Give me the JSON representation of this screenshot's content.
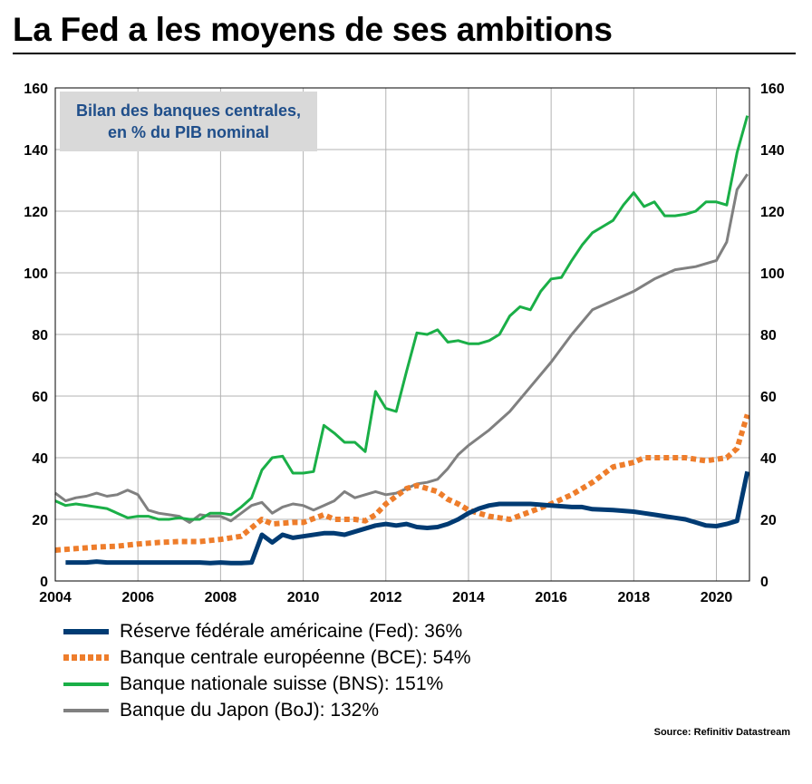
{
  "title": "La Fed a les moyens de ses ambitions",
  "source": "Source: Refinitiv Datastream",
  "annotation": [
    "Bilan des banques centrales,",
    "en % du PIB nominal"
  ],
  "chart_data": {
    "type": "line",
    "xlim": [
      2004,
      2020.8
    ],
    "ylim": [
      0,
      160
    ],
    "x_ticks": [
      "2004",
      "2006",
      "2008",
      "2010",
      "2012",
      "2014",
      "2016",
      "2018",
      "2020"
    ],
    "y_ticks": [
      "0",
      "20",
      "40",
      "60",
      "80",
      "100",
      "120",
      "140",
      "160"
    ],
    "grid": true,
    "legend_position": "bottom",
    "series": [
      {
        "name": "Réserve fédérale américaine (Fed): 36%",
        "color": "#003b73",
        "style": "solid",
        "points": [
          [
            2004.25,
            6
          ],
          [
            2004.75,
            6
          ],
          [
            2005,
            6.3
          ],
          [
            2005.25,
            6
          ],
          [
            2005.75,
            6
          ],
          [
            2006,
            6
          ],
          [
            2006.5,
            6
          ],
          [
            2007,
            6
          ],
          [
            2007.5,
            6
          ],
          [
            2007.75,
            5.8
          ],
          [
            2008,
            6
          ],
          [
            2008.25,
            5.8
          ],
          [
            2008.5,
            5.8
          ],
          [
            2008.75,
            6
          ],
          [
            2009,
            15
          ],
          [
            2009.25,
            12.5
          ],
          [
            2009.5,
            15
          ],
          [
            2009.75,
            14
          ],
          [
            2010,
            14.5
          ],
          [
            2010.5,
            15.5
          ],
          [
            2010.75,
            15.5
          ],
          [
            2011,
            15
          ],
          [
            2011.5,
            17
          ],
          [
            2011.75,
            18
          ],
          [
            2012,
            18.5
          ],
          [
            2012.25,
            18
          ],
          [
            2012.5,
            18.5
          ],
          [
            2012.75,
            17.5
          ],
          [
            2013,
            17.2
          ],
          [
            2013.25,
            17.5
          ],
          [
            2013.5,
            18.5
          ],
          [
            2013.75,
            20
          ],
          [
            2014,
            22
          ],
          [
            2014.25,
            23.5
          ],
          [
            2014.5,
            24.5
          ],
          [
            2014.75,
            25
          ],
          [
            2015,
            25
          ],
          [
            2015.5,
            25
          ],
          [
            2016,
            24.5
          ],
          [
            2016.5,
            24
          ],
          [
            2016.75,
            24
          ],
          [
            2017,
            23.3
          ],
          [
            2017.5,
            23
          ],
          [
            2018,
            22.5
          ],
          [
            2018.25,
            22
          ],
          [
            2018.5,
            21.5
          ],
          [
            2018.75,
            21
          ],
          [
            2019,
            20.5
          ],
          [
            2019.25,
            20
          ],
          [
            2019.5,
            19
          ],
          [
            2019.75,
            18
          ],
          [
            2020,
            17.8
          ],
          [
            2020.25,
            18.5
          ],
          [
            2020.5,
            19.5
          ],
          [
            2020.75,
            35.5
          ]
        ]
      },
      {
        "name": "Banque centrale européenne (BCE): 54%",
        "color": "#ee7d2b",
        "style": "dotted",
        "points": [
          [
            2004,
            10
          ],
          [
            2004.5,
            10.5
          ],
          [
            2005,
            11
          ],
          [
            2005.5,
            11.3
          ],
          [
            2006,
            12
          ],
          [
            2006.5,
            12.5
          ],
          [
            2007,
            12.8
          ],
          [
            2007.5,
            12.8
          ],
          [
            2008,
            13.5
          ],
          [
            2008.5,
            14.5
          ],
          [
            2009,
            20
          ],
          [
            2009.25,
            18.5
          ],
          [
            2009.75,
            19
          ],
          [
            2010,
            19
          ],
          [
            2010.5,
            21.5
          ],
          [
            2010.75,
            20
          ],
          [
            2011,
            20
          ],
          [
            2011.25,
            20
          ],
          [
            2011.5,
            19.5
          ],
          [
            2011.75,
            21.5
          ],
          [
            2012,
            25
          ],
          [
            2012.25,
            27.5
          ],
          [
            2012.5,
            30
          ],
          [
            2012.75,
            31
          ],
          [
            2013,
            30
          ],
          [
            2013.25,
            29
          ],
          [
            2013.5,
            26.5
          ],
          [
            2013.75,
            25
          ],
          [
            2014,
            23
          ],
          [
            2014.25,
            22
          ],
          [
            2014.5,
            21
          ],
          [
            2014.75,
            20.5
          ],
          [
            2015,
            20
          ],
          [
            2015.5,
            22.5
          ],
          [
            2016,
            25
          ],
          [
            2016.5,
            28
          ],
          [
            2017,
            32
          ],
          [
            2017.5,
            37
          ],
          [
            2018,
            38.5
          ],
          [
            2018.25,
            40
          ],
          [
            2018.5,
            40
          ],
          [
            2019,
            40
          ],
          [
            2019.25,
            40
          ],
          [
            2019.5,
            39.5
          ],
          [
            2019.75,
            39
          ],
          [
            2020,
            39.5
          ],
          [
            2020.25,
            40
          ],
          [
            2020.5,
            43
          ],
          [
            2020.75,
            54
          ]
        ]
      },
      {
        "name": "Banque nationale suisse (BNS): 151%",
        "color": "#1aaf47",
        "style": "solid",
        "points": [
          [
            2004,
            26
          ],
          [
            2004.25,
            24.5
          ],
          [
            2004.5,
            25
          ],
          [
            2005,
            24
          ],
          [
            2005.25,
            23.5
          ],
          [
            2005.5,
            22
          ],
          [
            2005.75,
            20.5
          ],
          [
            2006,
            21
          ],
          [
            2006.25,
            21
          ],
          [
            2006.5,
            20
          ],
          [
            2006.75,
            20
          ],
          [
            2007,
            20.5
          ],
          [
            2007.25,
            20
          ],
          [
            2007.5,
            20
          ],
          [
            2007.75,
            22
          ],
          [
            2008,
            22
          ],
          [
            2008.25,
            21.5
          ],
          [
            2008.5,
            24
          ],
          [
            2008.75,
            27
          ],
          [
            2009,
            36
          ],
          [
            2009.25,
            40
          ],
          [
            2009.5,
            40.5
          ],
          [
            2009.75,
            35
          ],
          [
            2010,
            35
          ],
          [
            2010.25,
            35.5
          ],
          [
            2010.5,
            50.5
          ],
          [
            2010.75,
            48
          ],
          [
            2011,
            45
          ],
          [
            2011.25,
            45
          ],
          [
            2011.5,
            42
          ],
          [
            2011.75,
            61.5
          ],
          [
            2012,
            56
          ],
          [
            2012.25,
            55
          ],
          [
            2012.5,
            68
          ],
          [
            2012.75,
            80.5
          ],
          [
            2013,
            80
          ],
          [
            2013.25,
            81.5
          ],
          [
            2013.5,
            77.5
          ],
          [
            2013.75,
            78
          ],
          [
            2014,
            77
          ],
          [
            2014.25,
            77
          ],
          [
            2014.5,
            78
          ],
          [
            2014.75,
            80
          ],
          [
            2015,
            86
          ],
          [
            2015.25,
            89
          ],
          [
            2015.5,
            88
          ],
          [
            2015.75,
            94
          ],
          [
            2016,
            98
          ],
          [
            2016.25,
            98.5
          ],
          [
            2016.5,
            104
          ],
          [
            2016.75,
            109
          ],
          [
            2017,
            113
          ],
          [
            2017.25,
            115
          ],
          [
            2017.5,
            117
          ],
          [
            2017.75,
            122
          ],
          [
            2018,
            126
          ],
          [
            2018.25,
            121.5
          ],
          [
            2018.5,
            123
          ],
          [
            2018.75,
            118.5
          ],
          [
            2019,
            118.5
          ],
          [
            2019.25,
            119
          ],
          [
            2019.5,
            120
          ],
          [
            2019.75,
            123
          ],
          [
            2020,
            123
          ],
          [
            2020.25,
            122
          ],
          [
            2020.5,
            139
          ],
          [
            2020.75,
            151
          ]
        ]
      },
      {
        "name": "Banque du Japon (BoJ): 132%",
        "color": "#808080",
        "style": "solid",
        "points": [
          [
            2004,
            28.5
          ],
          [
            2004.25,
            26
          ],
          [
            2004.5,
            27
          ],
          [
            2004.75,
            27.5
          ],
          [
            2005,
            28.5
          ],
          [
            2005.25,
            27.5
          ],
          [
            2005.5,
            28
          ],
          [
            2005.75,
            29.5
          ],
          [
            2006,
            28
          ],
          [
            2006.25,
            23
          ],
          [
            2006.5,
            22
          ],
          [
            2006.75,
            21.5
          ],
          [
            2007,
            21
          ],
          [
            2007.25,
            19
          ],
          [
            2007.5,
            21.5
          ],
          [
            2007.75,
            21
          ],
          [
            2008,
            21
          ],
          [
            2008.25,
            19.5
          ],
          [
            2008.5,
            22
          ],
          [
            2008.75,
            24.5
          ],
          [
            2009,
            25.5
          ],
          [
            2009.25,
            22
          ],
          [
            2009.5,
            24
          ],
          [
            2009.75,
            25
          ],
          [
            2010,
            24.5
          ],
          [
            2010.25,
            23
          ],
          [
            2010.5,
            24.5
          ],
          [
            2010.75,
            26
          ],
          [
            2011,
            29
          ],
          [
            2011.25,
            27
          ],
          [
            2011.5,
            28
          ],
          [
            2011.75,
            29
          ],
          [
            2012,
            28
          ],
          [
            2012.25,
            28.5
          ],
          [
            2012.5,
            30
          ],
          [
            2012.75,
            31.5
          ],
          [
            2013,
            32
          ],
          [
            2013.25,
            33
          ],
          [
            2013.5,
            36.5
          ],
          [
            2013.75,
            41
          ],
          [
            2014,
            44
          ],
          [
            2014.5,
            49
          ],
          [
            2015,
            55
          ],
          [
            2015.5,
            63
          ],
          [
            2016,
            71
          ],
          [
            2016.5,
            80
          ],
          [
            2017,
            88
          ],
          [
            2017.5,
            91
          ],
          [
            2018,
            94
          ],
          [
            2018.5,
            98
          ],
          [
            2019,
            101
          ],
          [
            2019.5,
            102
          ],
          [
            2020,
            104
          ],
          [
            2020.25,
            110
          ],
          [
            2020.5,
            127
          ],
          [
            2020.75,
            132
          ]
        ]
      }
    ]
  }
}
